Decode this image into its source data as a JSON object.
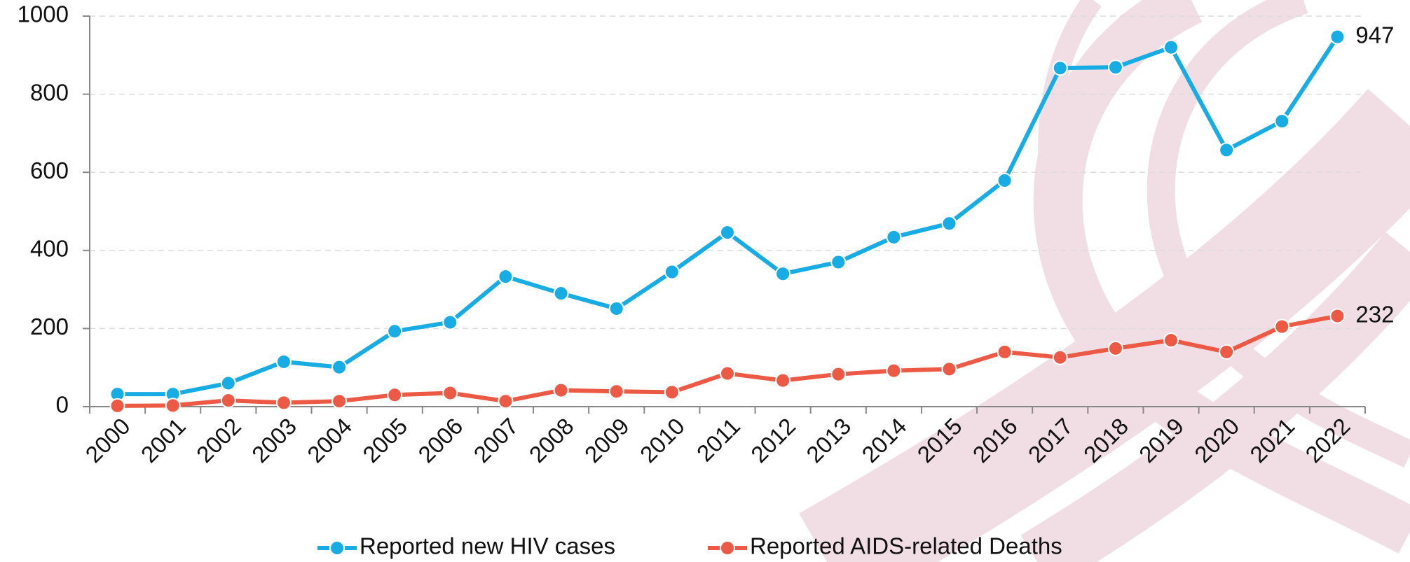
{
  "chart_data": {
    "type": "line",
    "categories": [
      "2000",
      "2001",
      "2002",
      "2003",
      "2004",
      "2005",
      "2006",
      "2007",
      "2008",
      "2009",
      "2010",
      "2011",
      "2012",
      "2013",
      "2014",
      "2015",
      "2016",
      "2017",
      "2018",
      "2019",
      "2020",
      "2021",
      "2022"
    ],
    "series": [
      {
        "name": "Reported new  HIV cases",
        "color": "#17ace3",
        "values": [
          32,
          32,
          60,
          115,
          101,
          193,
          216,
          333,
          290,
          251,
          345,
          446,
          340,
          370,
          434,
          469,
          579,
          867,
          869,
          920,
          657,
          731,
          947
        ]
      },
      {
        "name": "Reported AIDS-related Deaths",
        "color": "#ec5a45",
        "values": [
          2,
          3,
          16,
          10,
          14,
          30,
          35,
          14,
          42,
          39,
          37,
          85,
          67,
          83,
          92,
          96,
          140,
          126,
          149,
          170,
          140,
          205,
          232
        ]
      }
    ],
    "ylim": [
      0,
      1000
    ],
    "yticks": [
      0,
      200,
      400,
      600,
      800,
      1000
    ],
    "grid": true,
    "legend": "bottom"
  }
}
